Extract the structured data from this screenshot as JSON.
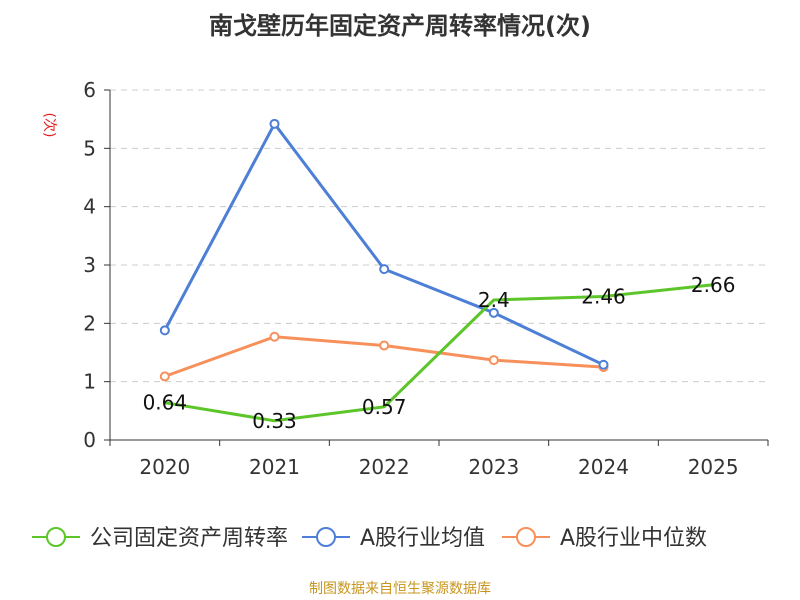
{
  "chart_data": {
    "type": "line",
    "title": "南戈壁历年固定资产周转率情况(次)",
    "ylabel": "(次)",
    "xlabel": "",
    "categories": [
      "2020",
      "2021",
      "2022",
      "2023",
      "2024",
      "2025"
    ],
    "ylim": [
      0,
      6
    ],
    "yticks": [
      "0",
      "1",
      "2",
      "3",
      "4",
      "5",
      "6"
    ],
    "grid": true,
    "legend_position": "bottom",
    "series": [
      {
        "name": "公司固定资产周转率",
        "color": "#5cc52a",
        "values": [
          0.64,
          0.33,
          0.57,
          2.4,
          2.46,
          2.66
        ],
        "labels": [
          "0.64",
          "0.33",
          "0.57",
          "2.4",
          "2.46",
          "2.66"
        ],
        "markers": false
      },
      {
        "name": "A股行业均值",
        "color": "#4d7fd6",
        "values": [
          1.88,
          5.42,
          2.93,
          2.18,
          1.29,
          null
        ],
        "markers": true
      },
      {
        "name": "A股行业中位数",
        "color": "#f7905a",
        "values": [
          1.09,
          1.77,
          1.62,
          1.37,
          1.25,
          null
        ],
        "markers": true
      }
    ],
    "source": "制图数据来自恒生聚源数据库"
  }
}
